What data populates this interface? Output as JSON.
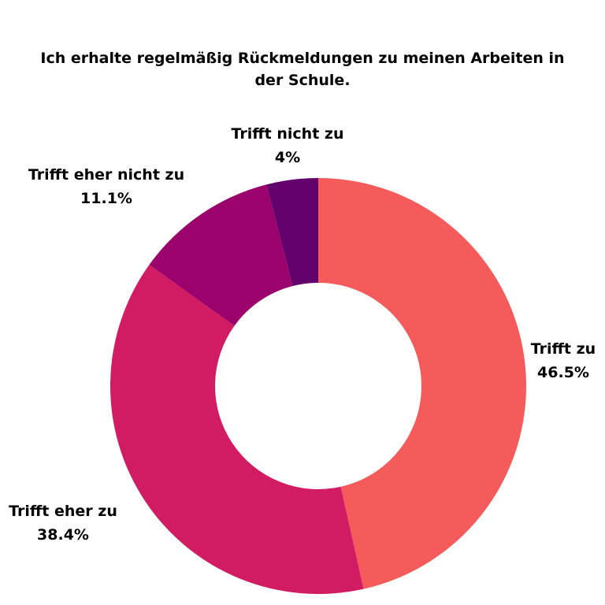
{
  "chart_data": {
    "type": "pie",
    "variant": "donut",
    "title": "Ich erhalte regelmäßig Rückmeldungen zu meinen Arbeiten in der Schule.",
    "categories": [
      "Trifft zu",
      "Trifft eher zu",
      "Trifft eher nicht zu",
      "Trifft nicht zu"
    ],
    "values": [
      46.5,
      38.4,
      11.1,
      4
    ],
    "value_labels": [
      "46.5%",
      "38.4%",
      "11.1%",
      "4%"
    ],
    "colors": [
      "#f55b5b",
      "#d11b63",
      "#9c026c",
      "#62006c"
    ],
    "legend": "none"
  }
}
